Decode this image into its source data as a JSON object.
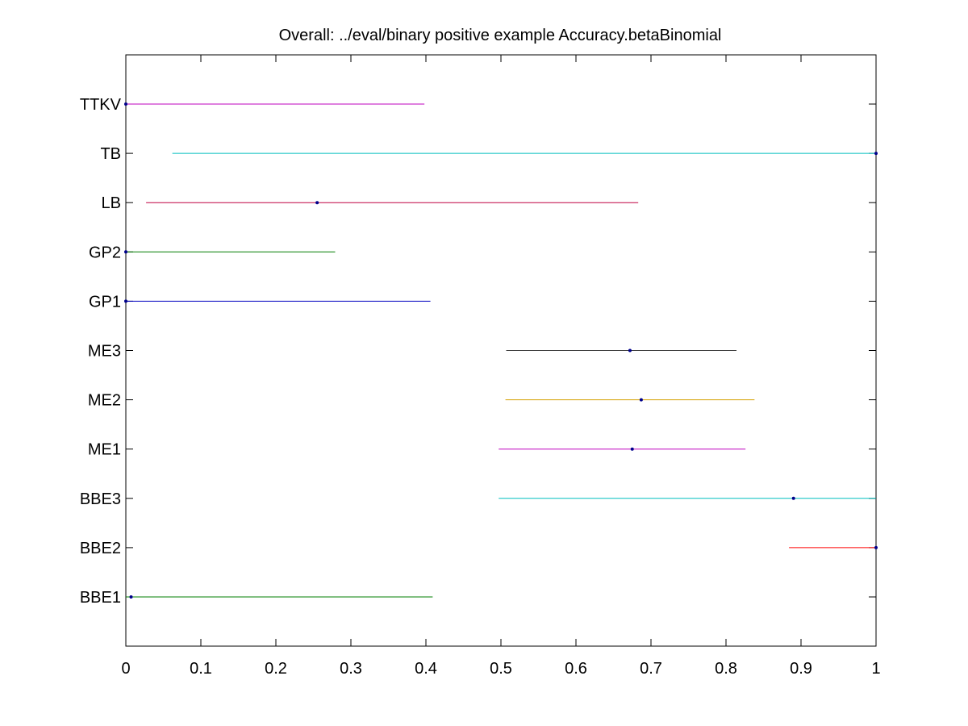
{
  "chart_data": {
    "type": "interval",
    "title": "Overall: ../eval/binary positive example Accuracy.betaBinomial",
    "xlabel": "",
    "ylabel": "",
    "xlim": [
      0,
      1
    ],
    "x_ticks": [
      "0",
      "0.1",
      "0.2",
      "0.3",
      "0.4",
      "0.5",
      "0.6",
      "0.7",
      "0.8",
      "0.9",
      "1"
    ],
    "grid": false,
    "legend": "none",
    "marker_color": "#00008b",
    "series": [
      {
        "name": "TTKV",
        "low": 0.0,
        "high": 0.398,
        "point": 0.0,
        "color": "#bf00bf"
      },
      {
        "name": "TB",
        "low": 0.062,
        "high": 1.0,
        "point": 1.0,
        "color": "#00bfbf"
      },
      {
        "name": "LB",
        "low": 0.027,
        "high": 0.683,
        "point": 0.255,
        "color": "#bf0040"
      },
      {
        "name": "GP2",
        "low": 0.0,
        "high": 0.279,
        "point": 0.0,
        "color": "#007f00"
      },
      {
        "name": "GP1",
        "low": 0.0,
        "high": 0.406,
        "point": 0.0,
        "color": "#0000bf"
      },
      {
        "name": "ME3",
        "low": 0.507,
        "high": 0.814,
        "point": 0.672,
        "color": "#404040"
      },
      {
        "name": "ME2",
        "low": 0.506,
        "high": 0.838,
        "point": 0.687,
        "color": "#d4a000"
      },
      {
        "name": "ME1",
        "low": 0.497,
        "high": 0.826,
        "point": 0.675,
        "color": "#bf00bf"
      },
      {
        "name": "BBE3",
        "low": 0.497,
        "high": 1.0,
        "point": 0.89,
        "color": "#00bfbf"
      },
      {
        "name": "BBE2",
        "low": 0.884,
        "high": 1.0,
        "point": 1.0,
        "color": "#ff0000"
      },
      {
        "name": "BBE1",
        "low": 0.0,
        "high": 0.409,
        "point": 0.007,
        "color": "#007f00"
      }
    ]
  }
}
